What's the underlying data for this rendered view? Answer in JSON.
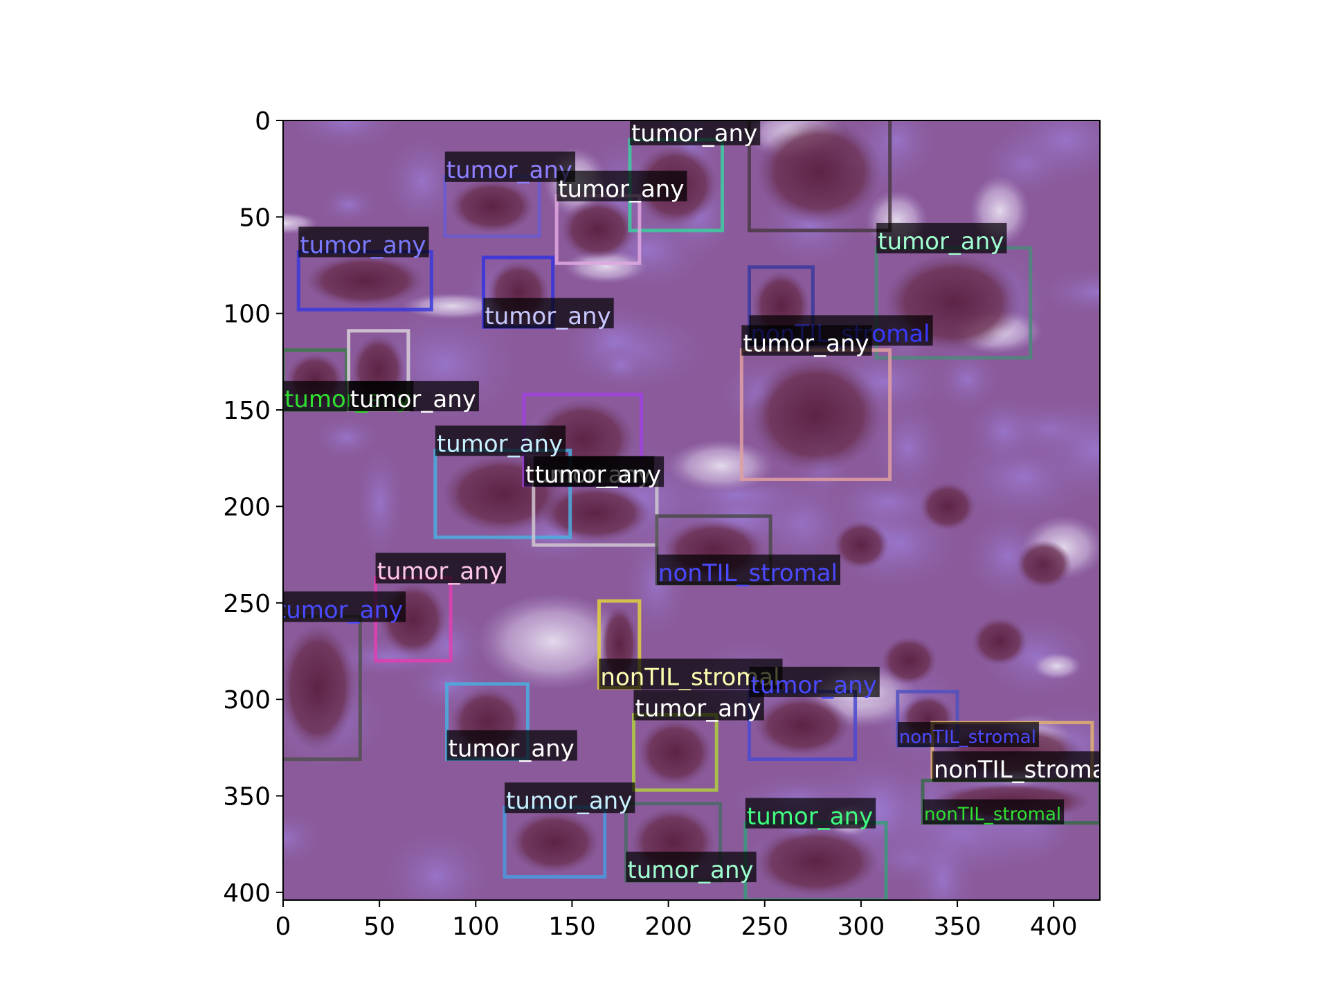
{
  "figure": {
    "image_description_hidden": false,
    "background": "#ffffff",
    "image_extent": {
      "x": [
        0,
        424
      ],
      "y": [
        0,
        404
      ]
    },
    "x_ticks": [
      "0",
      "50",
      "100",
      "150",
      "200",
      "250",
      "300",
      "350",
      "400"
    ],
    "y_ticks": [
      "0",
      "50",
      "100",
      "150",
      "200",
      "250",
      "300",
      "350",
      "400"
    ],
    "x_tick_values": [
      0,
      50,
      100,
      150,
      200,
      250,
      300,
      350,
      400
    ],
    "y_tick_values": [
      0,
      50,
      100,
      150,
      200,
      250,
      300,
      350,
      400
    ],
    "tissue_colors": {
      "base": "#8a5a9a",
      "dark_nucleus": "#6a3050",
      "light": "#c8b0d8",
      "stroma": "#9a78c0"
    },
    "detections": [
      {
        "label": "tumor_any",
        "x0": 242,
        "y0": -4,
        "x1": 315,
        "y1": 57,
        "color": "#4a3a44",
        "text_color": "#e03030",
        "label_pos": "top"
      },
      {
        "label": "tumor_any",
        "x0": 180,
        "y0": 10,
        "x1": 228,
        "y1": 57,
        "color": "#3ccfa0",
        "text_color": "#ffffff",
        "label_pos": "top"
      },
      {
        "label": "tumor_any",
        "x0": 84,
        "y0": 29,
        "x1": 133,
        "y1": 60,
        "color": "#6a5ad0",
        "text_color": "#8f80ff",
        "label_pos": "top"
      },
      {
        "label": "tumor_any",
        "x0": 142,
        "y0": 39,
        "x1": 185,
        "y1": 74,
        "color": "#e0a8e0",
        "text_color": "#ffffff",
        "label_pos": "top"
      },
      {
        "label": "tumor_any",
        "x0": 8,
        "y0": 68,
        "x1": 77,
        "y1": 98,
        "color": "#3a3adc",
        "text_color": "#7a7aff",
        "label_pos": "top"
      },
      {
        "label": "tumor_any",
        "x0": 104,
        "y0": 71,
        "x1": 140,
        "y1": 107,
        "color": "#3434e0",
        "text_color": "#c8c8ff",
        "label_pos": "bottom"
      },
      {
        "label": "tumor_any",
        "x0": 308,
        "y0": 66,
        "x1": 388,
        "y1": 123,
        "color": "#4a8a7a",
        "text_color": "#a0ffd0",
        "label_pos": "top"
      },
      {
        "label": "nonTIL_stromal",
        "x0": 242,
        "y0": 76,
        "x1": 275,
        "y1": 116,
        "color": "#3a3aa0",
        "text_color": "#3a3aff",
        "label_pos": "bottom"
      },
      {
        "label": "tumor_any",
        "x0": 238,
        "y0": 119,
        "x1": 315,
        "y1": 186,
        "color": "#e0a0a0",
        "text_color": "#ffffff",
        "label_pos": "top"
      },
      {
        "label": "tumor_any",
        "x0": 0,
        "y0": 119,
        "x1": 33,
        "y1": 150,
        "color": "#3a7a4a",
        "text_color": "#30e030",
        "label_pos": "bottom"
      },
      {
        "label": "tumor_any",
        "x0": 34,
        "y0": 109,
        "x1": 65,
        "y1": 150,
        "color": "#d8d0d8",
        "text_color": "#ffffff",
        "label_pos": "bottom"
      },
      {
        "label": "tumor_any",
        "x0": 125,
        "y0": 142,
        "x1": 186,
        "y1": 189,
        "color": "#a040e0",
        "text_color": "#ffffff",
        "label_pos": "bottom"
      },
      {
        "label": "tumor_any",
        "x0": 79,
        "y0": 171,
        "x1": 149,
        "y1": 216,
        "color": "#4aaee0",
        "text_color": "#c8f0ff",
        "label_pos": "top"
      },
      {
        "label": "tumor_any",
        "x0": 130,
        "y0": 187,
        "x1": 194,
        "y1": 220,
        "color": "#d0c8d0",
        "text_color": "#ffffff",
        "label_pos": "top"
      },
      {
        "label": "nonTIL_stromal",
        "x0": 194,
        "y0": 205,
        "x1": 253,
        "y1": 240,
        "color": "#4a4a4a",
        "text_color": "#4a4aff",
        "label_pos": "bottom"
      },
      {
        "label": "tumor_any",
        "x0": 48,
        "y0": 237,
        "x1": 87,
        "y1": 280,
        "color": "#e040b0",
        "text_color": "#ffc8e8",
        "label_pos": "top"
      },
      {
        "label": "tumor_any",
        "x0": -4,
        "y0": 257,
        "x1": 40,
        "y1": 331,
        "color": "#505050",
        "text_color": "#4a4aff",
        "label_pos": "top"
      },
      {
        "label": "nonTIL_stromal",
        "x0": 164,
        "y0": 249,
        "x1": 185,
        "y1": 294,
        "color": "#e0d040",
        "text_color": "#ffffb0",
        "label_pos": "bottom"
      },
      {
        "label": "tumor_any",
        "x0": 85,
        "y0": 292,
        "x1": 127,
        "y1": 331,
        "color": "#4aaee0",
        "text_color": "#ffffff",
        "label_pos": "bottom"
      },
      {
        "label": "tumor_any",
        "x0": 182,
        "y0": 308,
        "x1": 225,
        "y1": 347,
        "color": "#b0d040",
        "text_color": "#ffffff",
        "label_pos": "top"
      },
      {
        "label": "tumor_any",
        "x0": 242,
        "y0": 296,
        "x1": 297,
        "y1": 331,
        "color": "#4a4ad0",
        "text_color": "#4a4aff",
        "label_pos": "top"
      },
      {
        "label": "nonTIL_stromal",
        "x0": 319,
        "y0": 296,
        "x1": 350,
        "y1": 324,
        "color": "#5050c0",
        "text_color": "#4a4aff",
        "label_pos": "bottom"
      },
      {
        "label": "nonTIL_stromal",
        "x0": 337,
        "y0": 312,
        "x1": 420,
        "y1": 342,
        "color": "#e0b070",
        "text_color": "#ffffff",
        "label_pos": "bottom"
      },
      {
        "label": "nonTIL_stromal",
        "x0": 332,
        "y0": 342,
        "x1": 424,
        "y1": 364,
        "color": "#3a6a4a",
        "text_color": "#30e030",
        "label_pos": "bottom"
      },
      {
        "label": "tumor_any",
        "x0": 115,
        "y0": 356,
        "x1": 167,
        "y1": 392,
        "color": "#4a9ae0",
        "text_color": "#c8f0ff",
        "label_pos": "top"
      },
      {
        "label": "tumor_any",
        "x0": 178,
        "y0": 354,
        "x1": 227,
        "y1": 394,
        "color": "#4a6a6a",
        "text_color": "#a0ffd0",
        "label_pos": "bottom"
      },
      {
        "label": "tumor_any",
        "x0": 240,
        "y0": 364,
        "x1": 313,
        "y1": 404,
        "color": "#3a9a7a",
        "text_color": "#40ff80",
        "label_pos": "top"
      }
    ]
  }
}
